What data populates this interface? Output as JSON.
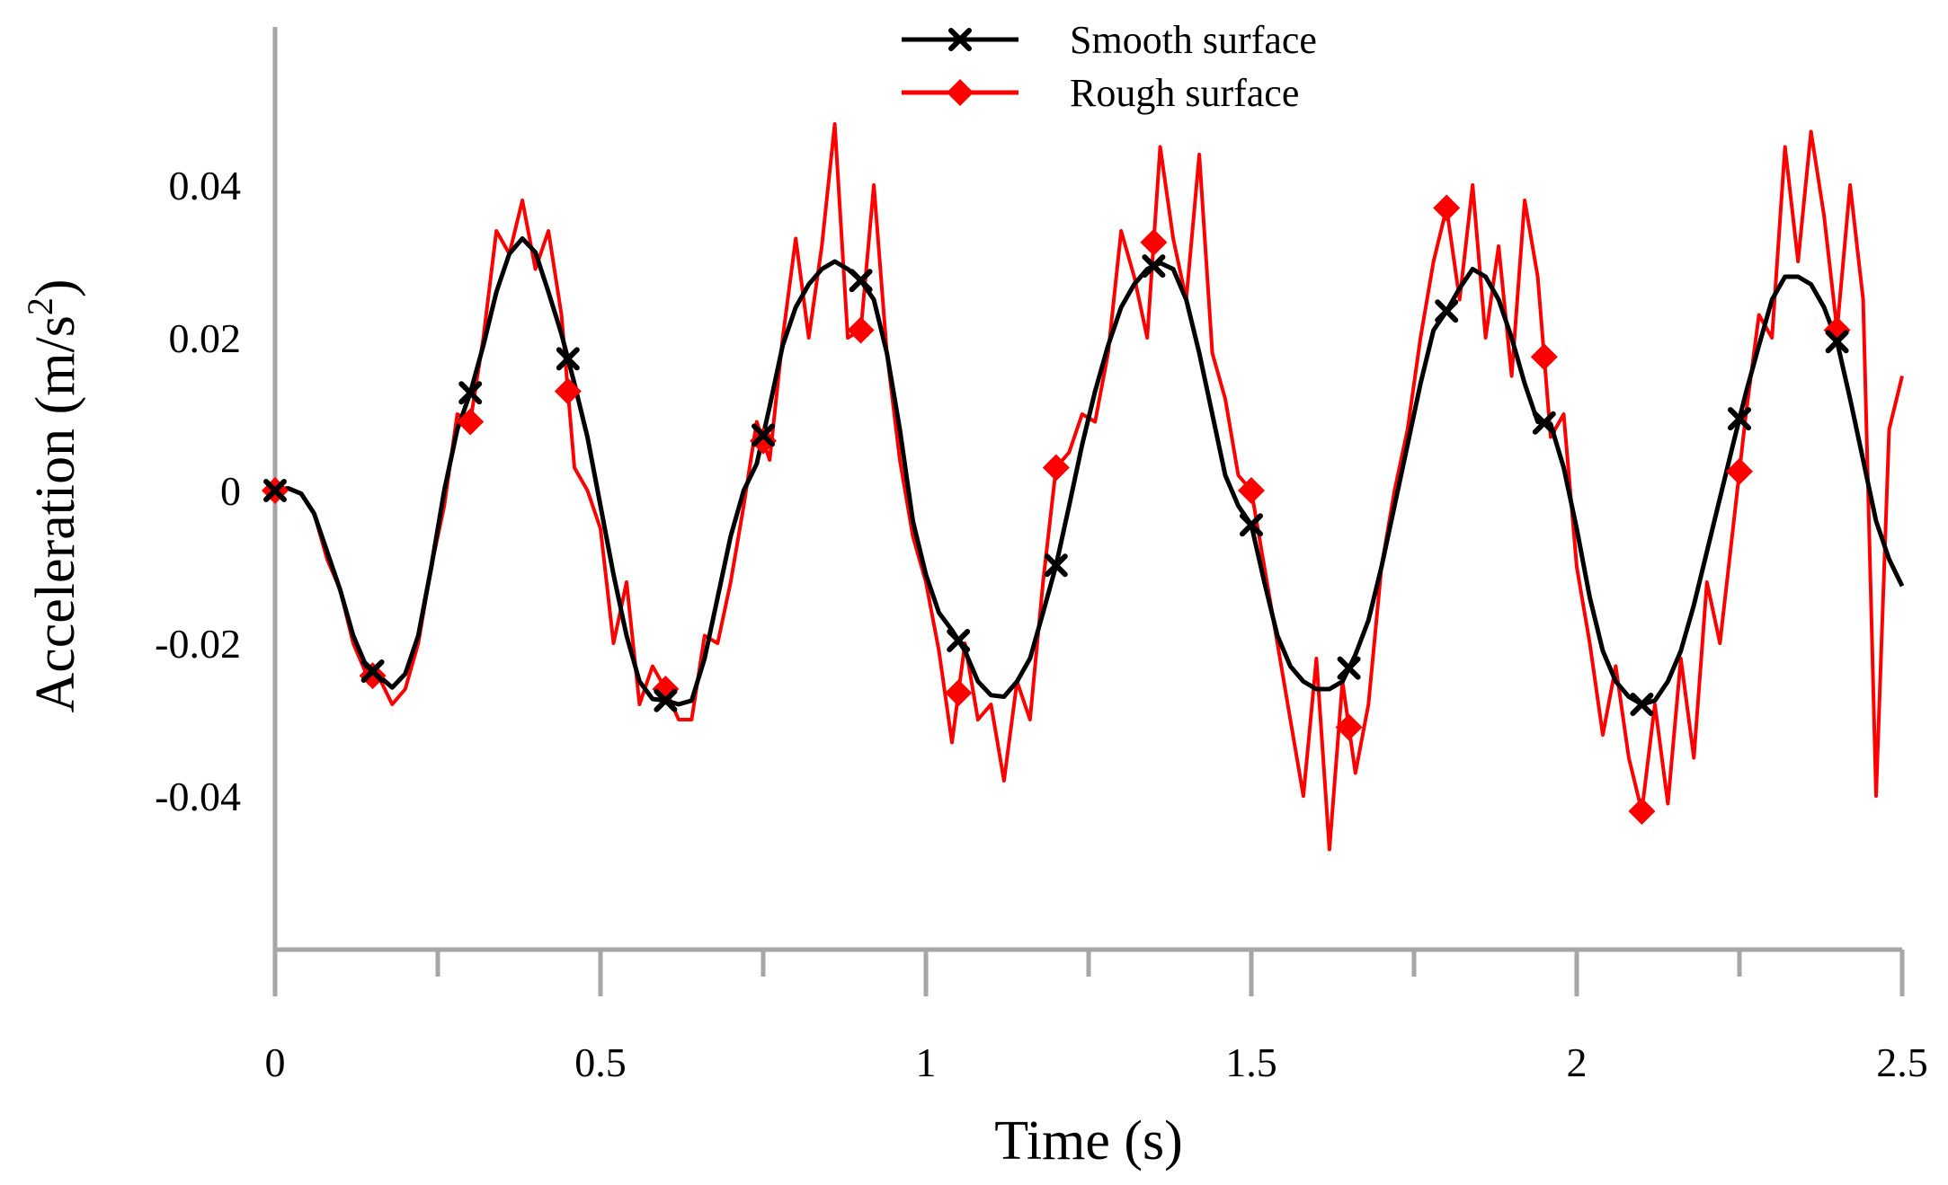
{
  "chart_data": {
    "type": "line",
    "title": "",
    "xlabel": "Time (s)",
    "ylabel": {
      "main": "Acceleration (m/s",
      "sup": "2",
      "close": ")"
    },
    "xlim": [
      0,
      2.5
    ],
    "ylim": [
      -0.06,
      0.06
    ],
    "x_ticks": [
      0,
      0.5,
      1,
      1.5,
      2,
      2.5
    ],
    "x_tick_labels": [
      "0",
      "0.5",
      "1",
      "1.5",
      "2",
      "2.5"
    ],
    "x_minor_ticks": [
      0.25,
      0.75,
      1.25,
      1.75,
      2.25
    ],
    "y_ticks": [
      0.04,
      0.02,
      0,
      -0.02,
      -0.04
    ],
    "y_tick_labels": [
      "0.04",
      "0.02",
      "0",
      "-0.02",
      "-0.04"
    ],
    "grid": false,
    "legend_position": "top-center",
    "series": [
      {
        "name": "Smooth surface",
        "color": "#000000",
        "marker": "x",
        "x": [
          0,
          0.02,
          0.04,
          0.06,
          0.08,
          0.1,
          0.12,
          0.14,
          0.16,
          0.18,
          0.2,
          0.22,
          0.24,
          0.26,
          0.28,
          0.3,
          0.32,
          0.34,
          0.36,
          0.38,
          0.4,
          0.42,
          0.44,
          0.46,
          0.48,
          0.5,
          0.52,
          0.54,
          0.56,
          0.58,
          0.6,
          0.62,
          0.64,
          0.66,
          0.68,
          0.7,
          0.72,
          0.74,
          0.76,
          0.78,
          0.8,
          0.82,
          0.84,
          0.86,
          0.88,
          0.9,
          0.92,
          0.94,
          0.96,
          0.98,
          1.0,
          1.02,
          1.04,
          1.06,
          1.08,
          1.1,
          1.12,
          1.14,
          1.16,
          1.18,
          1.2,
          1.22,
          1.24,
          1.26,
          1.28,
          1.3,
          1.32,
          1.34,
          1.36,
          1.38,
          1.4,
          1.42,
          1.44,
          1.46,
          1.48,
          1.5,
          1.52,
          1.54,
          1.56,
          1.58,
          1.6,
          1.62,
          1.64,
          1.66,
          1.68,
          1.7,
          1.72,
          1.74,
          1.76,
          1.78,
          1.8,
          1.82,
          1.84,
          1.86,
          1.88,
          1.9,
          1.92,
          1.94,
          1.96,
          1.98,
          2.0,
          2.02,
          2.04,
          2.06,
          2.08,
          2.1,
          2.12,
          2.14,
          2.16,
          2.18,
          2.2,
          2.22,
          2.24,
          2.26,
          2.28,
          2.3,
          2.32,
          2.34,
          2.36,
          2.38,
          2.4,
          2.42,
          2.44,
          2.46,
          2.48,
          2.5
        ],
        "y": [
          0,
          0.0003,
          -0.0004,
          -0.003,
          -0.008,
          -0.013,
          -0.019,
          -0.023,
          -0.0243,
          -0.0258,
          -0.024,
          -0.019,
          -0.01,
          0.0,
          0.008,
          0.0128,
          0.019,
          0.026,
          0.031,
          0.033,
          0.0312,
          0.026,
          0.0205,
          0.014,
          0.007,
          -0.002,
          -0.011,
          -0.019,
          -0.025,
          -0.0273,
          -0.0275,
          -0.028,
          -0.0275,
          -0.022,
          -0.014,
          -0.006,
          0.0,
          0.0035,
          0.011,
          0.019,
          0.024,
          0.027,
          0.029,
          0.03,
          0.029,
          0.0275,
          0.025,
          0.018,
          0.008,
          -0.004,
          -0.011,
          -0.016,
          -0.0183,
          -0.021,
          -0.025,
          -0.0268,
          -0.027,
          -0.025,
          -0.022,
          -0.016,
          -0.0098,
          -0.002,
          0.006,
          0.013,
          0.019,
          0.024,
          0.027,
          0.029,
          0.0298,
          0.029,
          0.025,
          0.018,
          0.01,
          0.002,
          -0.002,
          -0.0045,
          -0.012,
          -0.019,
          -0.023,
          -0.025,
          -0.026,
          -0.026,
          -0.025,
          -0.0215,
          -0.017,
          -0.01,
          -0.002,
          0.006,
          0.014,
          0.021,
          0.0235,
          0.0265,
          0.029,
          0.028,
          0.025,
          0.02,
          0.014,
          0.009,
          0.0087,
          0.003,
          -0.005,
          -0.014,
          -0.021,
          -0.025,
          -0.027,
          -0.028,
          -0.0275,
          -0.025,
          -0.021,
          -0.015,
          -0.008,
          -0.001,
          0.006,
          0.0128,
          0.019,
          0.025,
          0.028,
          0.028,
          0.027,
          0.024,
          0.0195,
          0.012,
          0.004,
          -0.004,
          -0.009,
          -0.0125
        ]
      },
      {
        "name": "Rough surface",
        "color": "#ff0000",
        "marker": "diamond",
        "x": [
          0,
          0.02,
          0.04,
          0.06,
          0.08,
          0.1,
          0.12,
          0.14,
          0.16,
          0.18,
          0.2,
          0.22,
          0.24,
          0.26,
          0.28,
          0.3,
          0.32,
          0.34,
          0.36,
          0.38,
          0.4,
          0.42,
          0.44,
          0.46,
          0.48,
          0.5,
          0.52,
          0.54,
          0.56,
          0.58,
          0.6,
          0.62,
          0.64,
          0.66,
          0.68,
          0.7,
          0.72,
          0.74,
          0.76,
          0.78,
          0.8,
          0.82,
          0.84,
          0.86,
          0.88,
          0.9,
          0.92,
          0.94,
          0.96,
          0.98,
          1.0,
          1.02,
          1.04,
          1.06,
          1.08,
          1.1,
          1.12,
          1.14,
          1.16,
          1.18,
          1.2,
          1.22,
          1.24,
          1.26,
          1.28,
          1.3,
          1.32,
          1.34,
          1.36,
          1.38,
          1.4,
          1.42,
          1.44,
          1.46,
          1.48,
          1.5,
          1.52,
          1.54,
          1.56,
          1.58,
          1.6,
          1.62,
          1.64,
          1.66,
          1.68,
          1.7,
          1.72,
          1.74,
          1.76,
          1.78,
          1.8,
          1.82,
          1.84,
          1.86,
          1.88,
          1.9,
          1.92,
          1.94,
          1.96,
          1.98,
          2.0,
          2.02,
          2.04,
          2.06,
          2.08,
          2.1,
          2.12,
          2.14,
          2.16,
          2.18,
          2.2,
          2.22,
          2.24,
          2.26,
          2.28,
          2.3,
          2.32,
          2.34,
          2.36,
          2.38,
          2.4,
          2.42,
          2.44,
          2.46,
          2.48,
          2.5
        ],
        "y": [
          0,
          0.0003,
          -0.0004,
          -0.003,
          -0.009,
          -0.013,
          -0.02,
          -0.024,
          -0.0245,
          -0.028,
          -0.026,
          -0.02,
          -0.01,
          -0.002,
          0.01,
          0.009,
          0.02,
          0.034,
          0.031,
          0.038,
          0.029,
          0.034,
          0.023,
          0.003,
          0.0,
          -0.005,
          -0.02,
          -0.012,
          -0.028,
          -0.023,
          -0.026,
          -0.03,
          -0.03,
          -0.019,
          -0.02,
          -0.012,
          -0.002,
          0.009,
          0.004,
          0.02,
          0.033,
          0.02,
          0.032,
          0.048,
          0.02,
          0.021,
          0.04,
          0.018,
          0.004,
          -0.006,
          -0.012,
          -0.021,
          -0.033,
          -0.02,
          -0.03,
          -0.028,
          -0.038,
          -0.025,
          -0.03,
          -0.012,
          0.003,
          0.005,
          0.01,
          0.009,
          0.018,
          0.034,
          0.028,
          0.02,
          0.045,
          0.033,
          0.025,
          0.044,
          0.018,
          0.012,
          0.002,
          0.0,
          -0.01,
          -0.02,
          -0.03,
          -0.04,
          -0.022,
          -0.047,
          -0.025,
          -0.037,
          -0.028,
          -0.01,
          0.0,
          0.008,
          0.02,
          0.03,
          0.037,
          0.025,
          0.04,
          0.02,
          0.032,
          0.015,
          0.038,
          0.028,
          0.007,
          0.01,
          -0.01,
          -0.02,
          -0.032,
          -0.023,
          -0.035,
          -0.042,
          -0.028,
          -0.041,
          -0.022,
          -0.035,
          -0.012,
          -0.02,
          -0.005,
          0.01,
          0.023,
          0.02,
          0.045,
          0.03,
          0.047,
          0.036,
          0.021,
          0.04,
          0.025,
          -0.04,
          0.008,
          0.015
        ]
      }
    ],
    "marker_x": [
      0,
      0.15,
      0.3,
      0.45,
      0.6,
      0.75,
      0.9,
      1.05,
      1.2,
      1.35,
      1.5,
      1.65,
      1.8,
      1.95,
      2.1,
      2.25,
      2.4
    ]
  }
}
